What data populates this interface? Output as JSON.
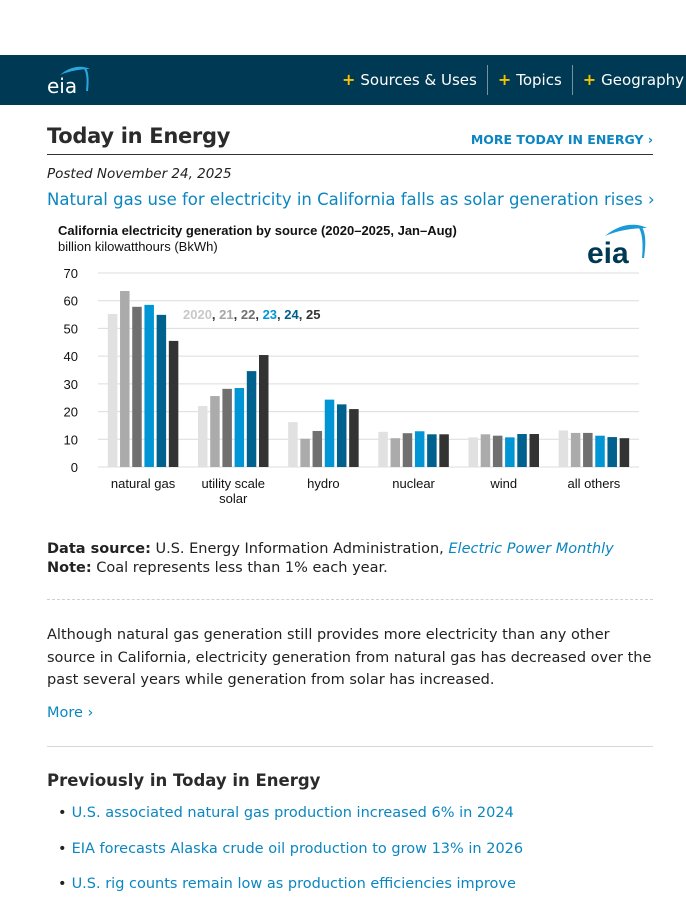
{
  "header": {
    "logo_text": "eia",
    "nav": [
      {
        "label": "Sources & Uses"
      },
      {
        "label": "Topics"
      },
      {
        "label": "Geography"
      }
    ],
    "nav_plus_color": "#f5c400",
    "bar_color": "#003953"
  },
  "section": {
    "title": "Today in Energy",
    "more_link": "MORE TODAY IN ENERGY ›"
  },
  "article": {
    "posted": "Posted November 24, 2025",
    "headline": "Natural gas use for electricity in California falls as solar generation rises ›",
    "source_label": "Data source:",
    "source_text": " U.S. Energy Information Administration, ",
    "source_link": "Electric Power Monthly",
    "note_label": "Note:",
    "note_text": " Coal represents less than 1% each year.",
    "summary": "Although natural gas generation still provides more electricity than any other source in California, electricity generation from natural gas has decreased over the past several years while generation from solar has increased.",
    "more_label": "More ›"
  },
  "previously": {
    "title": "Previously in Today in Energy",
    "items": [
      {
        "label": "U.S. associated natural gas production increased 6% in 2024"
      },
      {
        "label": "EIA forecasts Alaska crude oil production to grow 13% in 2026"
      },
      {
        "label": "U.S. rig counts remain low as production efficiencies improve"
      }
    ]
  },
  "chart_data": {
    "type": "bar",
    "title": "California electricity generation by source (2020–2025, Jan–Aug)",
    "subtitle": "billion kilowatthours (BkWh)",
    "xlabel": "",
    "ylabel": "billion kilowatthours (BkWh)",
    "ylim": [
      0,
      70
    ],
    "yticks": [
      0,
      10,
      20,
      30,
      40,
      50,
      60,
      70
    ],
    "grid": true,
    "logo_text": "eia",
    "categories": [
      "natural gas",
      "utility scale\nsolar",
      "hydro",
      "nuclear",
      "wind",
      "all others"
    ],
    "legend_placement": "inline-top-center",
    "legend": [
      {
        "text": "2020",
        "color": "#c8c8c8"
      },
      {
        "text": "21",
        "color": "#a6a6a6"
      },
      {
        "text": "22",
        "color": "#707070"
      },
      {
        "text": "23",
        "color": "#0096d6"
      },
      {
        "text": "24",
        "color": "#005f8a"
      },
      {
        "text": "25",
        "color": "#333333"
      }
    ],
    "series": [
      {
        "name": "2020",
        "color": "#e1e1e1",
        "values": [
          55.2,
          22.0,
          16.2,
          12.7,
          10.7,
          13.2
        ]
      },
      {
        "name": "2021",
        "color": "#ababab",
        "values": [
          63.5,
          25.6,
          10.2,
          10.4,
          11.8,
          12.3
        ]
      },
      {
        "name": "2022",
        "color": "#707070",
        "values": [
          57.8,
          28.2,
          13.0,
          12.2,
          11.3,
          12.3
        ]
      },
      {
        "name": "2023",
        "color": "#0096d6",
        "values": [
          58.5,
          28.5,
          24.3,
          12.9,
          10.7,
          11.3
        ]
      },
      {
        "name": "2024",
        "color": "#00618e",
        "values": [
          54.9,
          34.6,
          22.6,
          11.8,
          11.9,
          10.8
        ]
      },
      {
        "name": "2025",
        "color": "#333333",
        "values": [
          45.5,
          40.4,
          20.9,
          11.8,
          11.9,
          10.4
        ]
      }
    ]
  }
}
